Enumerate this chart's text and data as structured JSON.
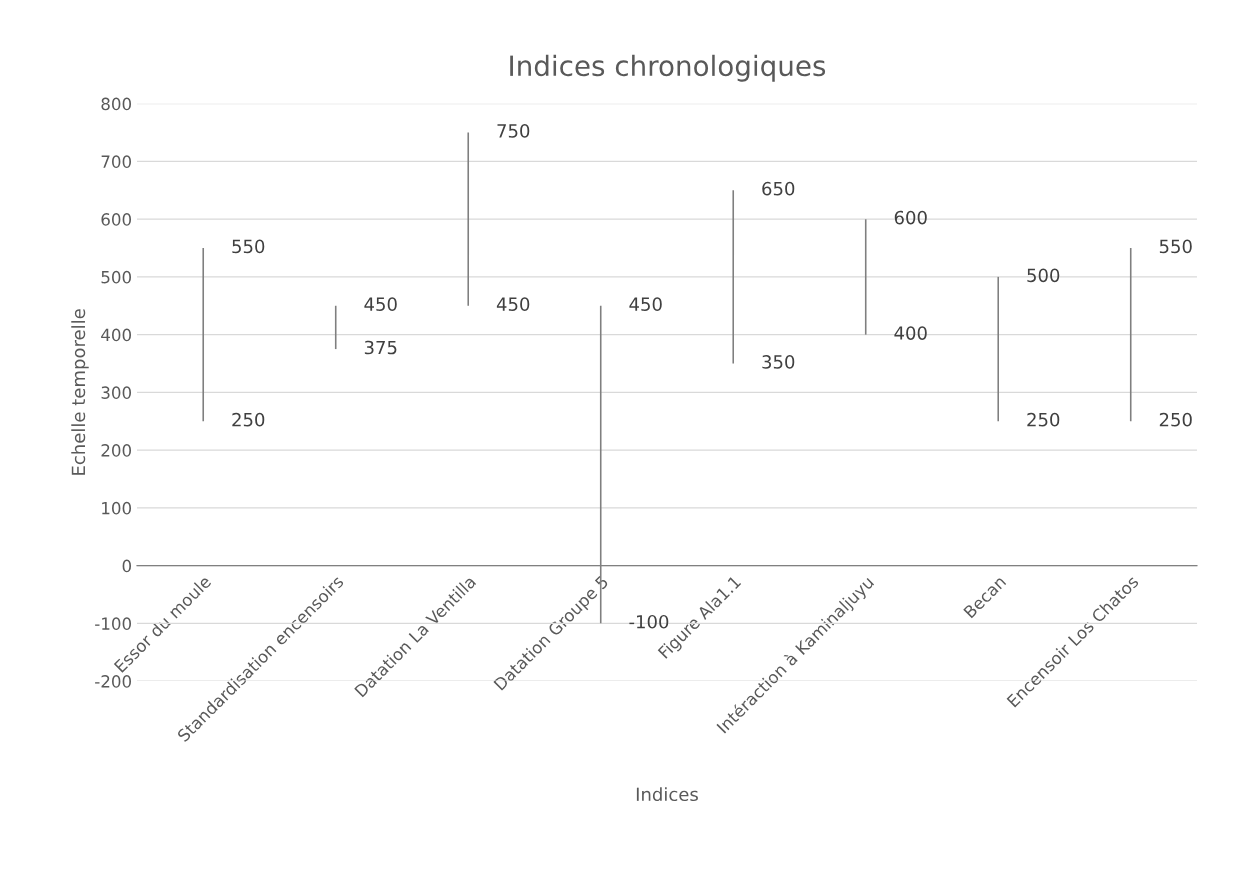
{
  "chart_data": {
    "type": "bar",
    "title": "Indices chronologiques",
    "xlabel": "Indices",
    "ylabel": "Echelle temporelle",
    "categories": [
      "Essor du moule",
      "Standardisation encensoirs",
      "Datation La Ventilla",
      "Datation Groupe 5",
      "Figure Ala1.1",
      "Intéraction à Kaminaljuyu",
      "Becan",
      "Encensoir Los Chatos"
    ],
    "base": [
      250,
      375,
      450,
      -100,
      350,
      400,
      250,
      250
    ],
    "values": [
      300,
      75,
      300,
      550,
      300,
      200,
      250,
      300
    ],
    "color": "#7f7f7f",
    "ylim": [
      -200,
      800
    ],
    "yticks": [
      -200,
      -100,
      0,
      100,
      200,
      300,
      400,
      500,
      600,
      700,
      800
    ],
    "grid": "y",
    "annotations": [
      {
        "text": "550",
        "x": "Essor du moule",
        "y": 550
      },
      {
        "text": "250",
        "x": "Essor du moule",
        "y": 250
      },
      {
        "text": "450",
        "x": "Standardisation encensoirs",
        "y": 450
      },
      {
        "text": "375",
        "x": "Standardisation encensoirs",
        "y": 375
      },
      {
        "text": "750",
        "x": "Datation La Ventilla",
        "y": 750
      },
      {
        "text": "450",
        "x": "Datation La Ventilla",
        "y": 450
      },
      {
        "text": "450",
        "x": "Datation Groupe 5",
        "y": 450
      },
      {
        "text": "-100",
        "x": "Datation Groupe 5",
        "y": -100
      },
      {
        "text": "650",
        "x": "Figure Ala1.1",
        "y": 650
      },
      {
        "text": "350",
        "x": "Figure Ala1.1",
        "y": 350
      },
      {
        "text": "600",
        "x": "Intéraction à Kaminaljuyu",
        "y": 600
      },
      {
        "text": "400",
        "x": "Intéraction à Kaminaljuyu",
        "y": 400
      },
      {
        "text": "500",
        "x": "Becan",
        "y": 500
      },
      {
        "text": "250",
        "x": "Becan",
        "y": 250
      },
      {
        "text": "550",
        "x": "Encensoir Los Chatos",
        "y": 550
      },
      {
        "text": "250",
        "x": "Encensoir Los Chatos",
        "y": 250
      }
    ]
  }
}
